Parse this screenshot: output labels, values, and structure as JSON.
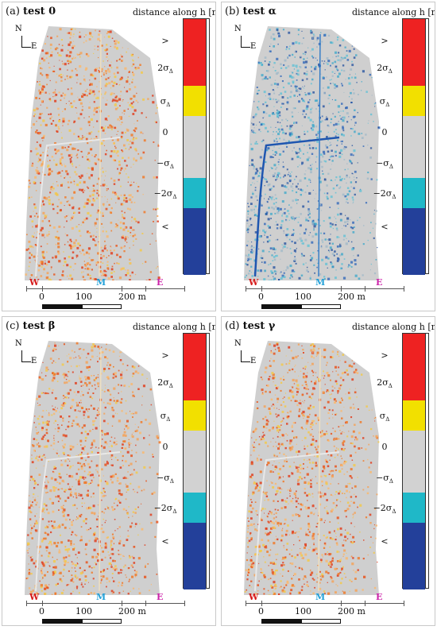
{
  "panels": [
    {
      "tag": "(a)",
      "name": "test 0",
      "mode": "orange"
    },
    {
      "tag": "(b)",
      "name": "test α",
      "mode": "blue"
    },
    {
      "tag": "(c)",
      "name": "test β",
      "mode": "orange"
    },
    {
      "tag": "(d)",
      "name": "test γ",
      "mode": "orange"
    }
  ],
  "colorbar": {
    "title": "distance along h [m]",
    "labels": [
      ">",
      "2σΔ",
      "σΔ",
      "0",
      "−σΔ",
      "−2σΔ",
      "<"
    ],
    "colors": {
      "red": "#ee2222",
      "yellow": "#f2e000",
      "gray": "#d2d2d2",
      "cyan": "#1fb8c8",
      "blue": "#23409a"
    }
  },
  "zones": [
    "W",
    "M",
    "E"
  ],
  "zone_colors": {
    "W": "#d61a1a",
    "M": "#22a0d8",
    "E": "#cc22aa"
  },
  "compass": {
    "north": "N",
    "east": "E"
  },
  "scale": {
    "labels": [
      "0",
      "100",
      "200 m"
    ]
  }
}
